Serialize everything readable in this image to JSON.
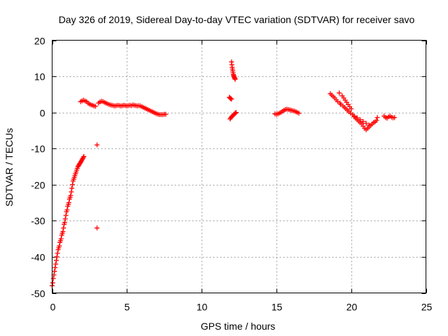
{
  "chart_data": {
    "type": "scatter",
    "title": "Day 326 of 2019, Sidereal Day-to-day VTEC variation (SDTVAR) for receiver savo",
    "xlabel": "GPS time / hours",
    "ylabel": "SDTVAR / TECUs",
    "xlim": [
      0,
      25
    ],
    "ylim": [
      -50,
      20
    ],
    "xticks": [
      0,
      5,
      10,
      15,
      20,
      25
    ],
    "yticks": [
      -50,
      -40,
      -30,
      -20,
      -10,
      0,
      10,
      20
    ],
    "xtick_labels": [
      "0",
      "5",
      "10",
      "15",
      "20",
      "25"
    ],
    "ytick_labels": [
      "-50",
      "-40",
      "-30",
      "-20",
      "-10",
      "0",
      "10",
      "20"
    ],
    "grid": true,
    "marker": "plus",
    "color": "#ff0000",
    "series": [
      {
        "name": "SDTVAR",
        "points": [
          [
            0.0,
            -48.0
          ],
          [
            0.04,
            -47.2
          ],
          [
            0.08,
            -46.0
          ],
          [
            0.12,
            -45.0
          ],
          [
            0.16,
            -44.0
          ],
          [
            0.2,
            -43.0
          ],
          [
            0.24,
            -42.0
          ],
          [
            0.28,
            -41.0
          ],
          [
            0.32,
            -40.0
          ],
          [
            0.36,
            -39.0
          ],
          [
            0.4,
            -38.0
          ],
          [
            0.44,
            -37.5
          ],
          [
            0.48,
            -37.0
          ],
          [
            0.52,
            -36.0
          ],
          [
            0.56,
            -35.5
          ],
          [
            0.6,
            -35.0
          ],
          [
            0.64,
            -34.0
          ],
          [
            0.68,
            -33.5
          ],
          [
            0.72,
            -33.0
          ],
          [
            0.76,
            -32.0
          ],
          [
            0.8,
            -31.0
          ],
          [
            0.84,
            -30.5
          ],
          [
            0.88,
            -29.5
          ],
          [
            0.92,
            -28.5
          ],
          [
            0.96,
            -27.5
          ],
          [
            1.0,
            -27.0
          ],
          [
            1.04,
            -26.0
          ],
          [
            1.08,
            -25.5
          ],
          [
            1.12,
            -25.0
          ],
          [
            1.16,
            -24.0
          ],
          [
            1.2,
            -23.5
          ],
          [
            1.24,
            -23.0
          ],
          [
            1.28,
            -22.0
          ],
          [
            1.32,
            -21.0
          ],
          [
            1.36,
            -20.0
          ],
          [
            1.4,
            -19.0
          ],
          [
            1.44,
            -18.5
          ],
          [
            1.48,
            -18.0
          ],
          [
            1.52,
            -17.5
          ],
          [
            1.56,
            -17.0
          ],
          [
            1.6,
            -16.5
          ],
          [
            1.64,
            -16.0
          ],
          [
            1.68,
            -15.5
          ],
          [
            1.72,
            -15.0
          ],
          [
            1.76,
            -14.8
          ],
          [
            1.8,
            -14.5
          ],
          [
            1.84,
            -14.2
          ],
          [
            1.88,
            -14.0
          ],
          [
            1.92,
            -13.7
          ],
          [
            1.96,
            -13.4
          ],
          [
            2.0,
            -13.1
          ],
          [
            2.04,
            -12.8
          ],
          [
            2.08,
            -12.5
          ],
          [
            2.12,
            -12.2
          ],
          [
            1.9,
            3.0
          ],
          [
            2.0,
            3.2
          ],
          [
            2.1,
            3.4
          ],
          [
            2.2,
            3.2
          ],
          [
            2.3,
            3.0
          ],
          [
            2.4,
            2.6
          ],
          [
            2.5,
            2.3
          ],
          [
            2.6,
            2.1
          ],
          [
            2.7,
            2.0
          ],
          [
            2.8,
            1.8
          ],
          [
            2.9,
            1.7
          ],
          [
            3.0,
            -9.0
          ],
          [
            3.0,
            -32.0
          ],
          [
            3.1,
            2.6
          ],
          [
            3.2,
            2.9
          ],
          [
            3.3,
            3.1
          ],
          [
            3.4,
            3.0
          ],
          [
            3.5,
            2.8
          ],
          [
            3.6,
            2.6
          ],
          [
            3.7,
            2.4
          ],
          [
            3.8,
            2.2
          ],
          [
            3.9,
            2.1
          ],
          [
            4.0,
            2.0
          ],
          [
            4.1,
            1.9
          ],
          [
            4.2,
            1.8
          ],
          [
            4.3,
            1.9
          ],
          [
            4.4,
            2.0
          ],
          [
            4.5,
            1.9
          ],
          [
            4.6,
            1.8
          ],
          [
            4.7,
            1.9
          ],
          [
            4.8,
            2.0
          ],
          [
            4.9,
            1.9
          ],
          [
            5.0,
            1.8
          ],
          [
            5.1,
            1.9
          ],
          [
            5.2,
            2.0
          ],
          [
            5.3,
            1.9
          ],
          [
            5.4,
            2.1
          ],
          [
            5.5,
            2.0
          ],
          [
            5.6,
            1.9
          ],
          [
            5.7,
            1.8
          ],
          [
            5.8,
            1.9
          ],
          [
            5.9,
            1.8
          ],
          [
            6.0,
            1.6
          ],
          [
            6.1,
            1.4
          ],
          [
            6.2,
            1.2
          ],
          [
            6.3,
            1.0
          ],
          [
            6.4,
            0.8
          ],
          [
            6.5,
            0.6
          ],
          [
            6.6,
            0.4
          ],
          [
            6.7,
            0.2
          ],
          [
            6.8,
            0.0
          ],
          [
            6.9,
            -0.2
          ],
          [
            7.0,
            -0.4
          ],
          [
            7.1,
            -0.5
          ],
          [
            7.2,
            -0.6
          ],
          [
            7.3,
            -0.6
          ],
          [
            7.4,
            -0.6
          ],
          [
            7.5,
            -0.5
          ],
          [
            7.6,
            -0.5
          ],
          [
            11.85,
            4.2
          ],
          [
            11.9,
            4.0
          ],
          [
            11.95,
            3.8
          ],
          [
            12.0,
            3.7
          ],
          [
            11.9,
            -1.8
          ],
          [
            11.95,
            -1.5
          ],
          [
            12.0,
            -1.2
          ],
          [
            12.05,
            -1.0
          ],
          [
            12.1,
            -0.8
          ],
          [
            12.15,
            -0.6
          ],
          [
            12.2,
            -0.4
          ],
          [
            12.25,
            -0.2
          ],
          [
            12.3,
            0.0
          ],
          [
            12.0,
            14.0
          ],
          [
            12.02,
            13.2
          ],
          [
            12.04,
            12.5
          ],
          [
            12.06,
            12.0
          ],
          [
            12.08,
            11.5
          ],
          [
            12.1,
            11.0
          ],
          [
            12.12,
            10.5
          ],
          [
            12.14,
            10.3
          ],
          [
            12.16,
            10.0
          ],
          [
            12.18,
            9.8
          ],
          [
            12.2,
            9.6
          ],
          [
            12.22,
            9.4
          ],
          [
            12.24,
            9.2
          ],
          [
            14.9,
            -0.4
          ],
          [
            15.0,
            -0.5
          ],
          [
            15.1,
            -0.4
          ],
          [
            15.2,
            -0.2
          ],
          [
            15.3,
            0.0
          ],
          [
            15.4,
            0.3
          ],
          [
            15.5,
            0.6
          ],
          [
            15.6,
            0.8
          ],
          [
            15.7,
            0.9
          ],
          [
            15.8,
            0.8
          ],
          [
            15.9,
            0.7
          ],
          [
            16.0,
            0.6
          ],
          [
            16.1,
            0.5
          ],
          [
            16.2,
            0.4
          ],
          [
            16.3,
            0.2
          ],
          [
            16.4,
            0.0
          ],
          [
            16.5,
            -0.2
          ],
          [
            18.6,
            5.2
          ],
          [
            18.7,
            4.8
          ],
          [
            18.8,
            4.4
          ],
          [
            18.9,
            4.0
          ],
          [
            19.0,
            3.5
          ],
          [
            19.1,
            3.0
          ],
          [
            19.2,
            5.4
          ],
          [
            19.25,
            2.6
          ],
          [
            19.3,
            2.2
          ],
          [
            19.4,
            4.6
          ],
          [
            19.45,
            1.8
          ],
          [
            19.5,
            4.0
          ],
          [
            19.55,
            1.4
          ],
          [
            19.6,
            3.4
          ],
          [
            19.65,
            1.0
          ],
          [
            19.7,
            2.8
          ],
          [
            19.75,
            0.6
          ],
          [
            19.8,
            2.2
          ],
          [
            19.85,
            0.2
          ],
          [
            19.9,
            1.6
          ],
          [
            19.95,
            -0.2
          ],
          [
            20.0,
            1.0
          ],
          [
            20.1,
            -0.6
          ],
          [
            20.2,
            -1.2
          ],
          [
            20.3,
            -1.6
          ],
          [
            20.4,
            -2.0
          ],
          [
            20.5,
            -2.4
          ],
          [
            20.6,
            -2.8
          ],
          [
            20.7,
            -3.2
          ],
          [
            20.8,
            -3.8
          ],
          [
            20.9,
            -4.4
          ],
          [
            21.0,
            -4.8
          ],
          [
            21.1,
            -4.4
          ],
          [
            21.2,
            -4.0
          ],
          [
            21.3,
            -3.6
          ],
          [
            21.4,
            -3.2
          ],
          [
            21.5,
            -2.8
          ],
          [
            21.6,
            -2.6
          ],
          [
            21.7,
            -2.2
          ],
          [
            21.75,
            -1.4
          ],
          [
            20.2,
            -1.0
          ],
          [
            20.4,
            -1.5
          ],
          [
            20.6,
            -2.0
          ],
          [
            20.8,
            -2.5
          ],
          [
            21.0,
            -3.0
          ],
          [
            21.2,
            -3.5
          ],
          [
            22.2,
            -1.0
          ],
          [
            22.3,
            -1.4
          ],
          [
            22.4,
            -1.6
          ],
          [
            22.5,
            -1.2
          ],
          [
            22.6,
            -1.0
          ],
          [
            22.7,
            -1.3
          ],
          [
            22.8,
            -1.5
          ],
          [
            22.9,
            -1.4
          ]
        ]
      }
    ]
  }
}
